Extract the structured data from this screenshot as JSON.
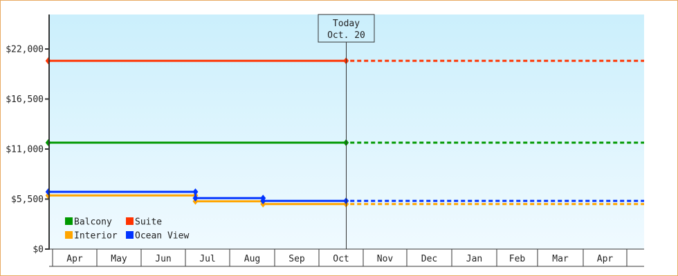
{
  "chart_data": {
    "type": "line",
    "title": "",
    "xlabel": "",
    "ylabel": "",
    "ylim": [
      0,
      26000
    ],
    "y_ticks": [
      0,
      5500,
      11000,
      16500,
      22000
    ],
    "y_tick_labels": [
      "$0",
      "$5,500",
      "$11,000",
      "$16,500",
      "$22,000"
    ],
    "x_tick_labels": [
      "Apr",
      "May",
      "Jun",
      "Jul",
      "Aug",
      "Sep",
      "Oct",
      "Nov",
      "Dec",
      "Jan",
      "Feb",
      "Mar",
      "Apr"
    ],
    "grid": false,
    "background": [
      "#cbeffc",
      "#f0faff"
    ],
    "today_marker": {
      "line1": "Today",
      "line2": "Oct. 20",
      "date": "Oct 20"
    },
    "legend_placement": "bottom-left",
    "projection_style": "dotted after today",
    "series": [
      {
        "name": "Balcony",
        "color": "#009900",
        "points": [
          {
            "x": "Mar 29",
            "y": 11700
          },
          {
            "x": "Oct 20",
            "y": 11700
          }
        ]
      },
      {
        "name": "Suite",
        "color": "#ff3300",
        "points": [
          {
            "x": "Mar 29",
            "y": 20700
          },
          {
            "x": "Oct 20",
            "y": 20700
          }
        ]
      },
      {
        "name": "Interior",
        "color": "#ffa500",
        "points": [
          {
            "x": "Mar 29",
            "y": 5900
          },
          {
            "x": "Jul 8",
            "y": 5900
          },
          {
            "x": "Jul 8",
            "y": 5250
          },
          {
            "x": "Aug 24",
            "y": 5250
          },
          {
            "x": "Aug 24",
            "y": 4950
          },
          {
            "x": "Oct 20",
            "y": 4950
          }
        ]
      },
      {
        "name": "Ocean View",
        "color": "#0033ff",
        "points": [
          {
            "x": "Mar 29",
            "y": 6300
          },
          {
            "x": "Jul 8",
            "y": 6300
          },
          {
            "x": "Jul 8",
            "y": 5600
          },
          {
            "x": "Aug 24",
            "y": 5600
          },
          {
            "x": "Aug 24",
            "y": 5300
          },
          {
            "x": "Oct 20",
            "y": 5300
          }
        ]
      }
    ]
  }
}
